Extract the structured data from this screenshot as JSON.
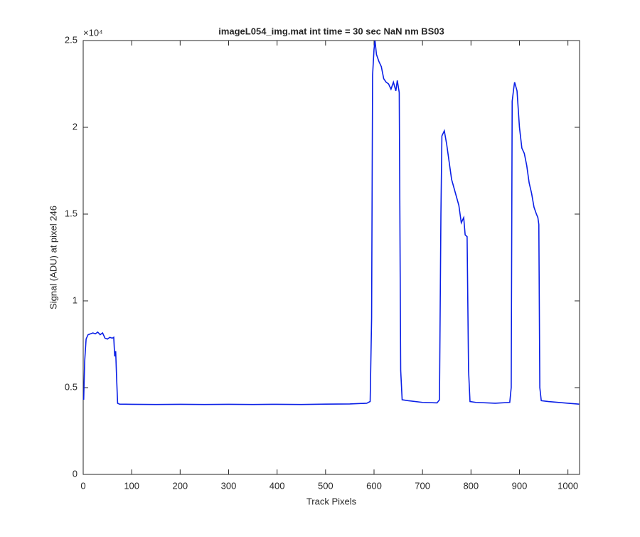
{
  "chart_data": {
    "type": "line",
    "title": "imageL054_img.mat int time = 30 sec  NaN nm BS03",
    "x_label": "Track Pixels",
    "y_label": "Signal (ADU) at pixel 246",
    "y_exponent_label": "×10⁴",
    "xlim": [
      0,
      1024
    ],
    "ylim": [
      0,
      25000
    ],
    "xticks": [
      0,
      100,
      200,
      300,
      400,
      500,
      600,
      700,
      800,
      900,
      1000
    ],
    "yticks": [
      0,
      {
        "value": 5000,
        "label": "0.5"
      },
      {
        "value": 10000,
        "label": "1"
      },
      {
        "value": 15000,
        "label": "1.5"
      },
      {
        "value": 20000,
        "label": "2"
      },
      {
        "value": 25000,
        "label": "2.5"
      }
    ],
    "grid": false,
    "series": [
      {
        "color": "#0a1fe6",
        "x": [
          1,
          3,
          6,
          10,
          15,
          20,
          25,
          30,
          35,
          40,
          45,
          50,
          55,
          60,
          63,
          65,
          67,
          69,
          71,
          75,
          100,
          150,
          200,
          250,
          300,
          350,
          400,
          450,
          500,
          550,
          585,
          592,
          595,
          597,
          600,
          602,
          605,
          610,
          615,
          620,
          625,
          630,
          635,
          640,
          645,
          648,
          652,
          655,
          658,
          670,
          700,
          730,
          735,
          738,
          740,
          745,
          750,
          755,
          760,
          765,
          770,
          775,
          780,
          785,
          788,
          792,
          795,
          798,
          810,
          850,
          880,
          883,
          885,
          888,
          890,
          895,
          900,
          905,
          910,
          915,
          920,
          925,
          930,
          935,
          938,
          940,
          942,
          945,
          960,
          1000,
          1023
        ],
        "values": [
          4300,
          6500,
          7800,
          8050,
          8100,
          8150,
          8100,
          8200,
          8050,
          8150,
          7850,
          7800,
          7900,
          7850,
          7900,
          6800,
          7100,
          5500,
          4100,
          4050,
          4040,
          4030,
          4040,
          4030,
          4040,
          4030,
          4040,
          4030,
          4050,
          4060,
          4100,
          4200,
          9000,
          23000,
          24500,
          25000,
          24200,
          23800,
          23500,
          22800,
          22600,
          22500,
          22200,
          22600,
          22100,
          22700,
          22000,
          6000,
          4300,
          4250,
          4150,
          4120,
          4300,
          15000,
          19500,
          19800,
          19000,
          18000,
          17000,
          16500,
          16000,
          15500,
          14500,
          14800,
          13800,
          13700,
          6000,
          4200,
          4150,
          4100,
          4150,
          5000,
          21500,
          22200,
          22600,
          22100,
          20000,
          18800,
          18500,
          17800,
          16800,
          16200,
          15400,
          15000,
          14800,
          14400,
          5000,
          4250,
          4200,
          4100,
          4050
        ]
      }
    ]
  }
}
